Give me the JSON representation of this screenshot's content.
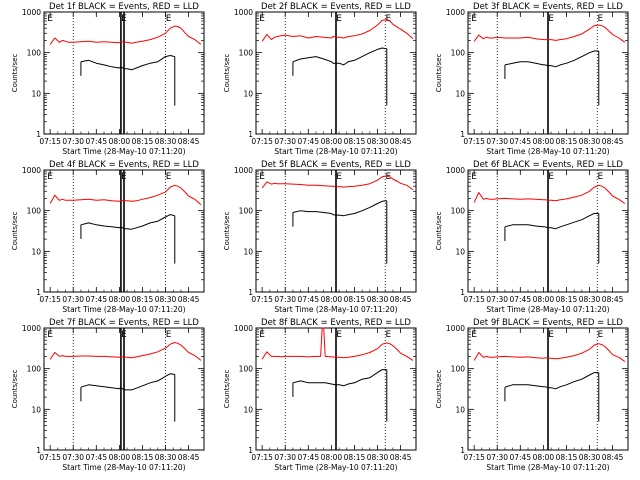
{
  "figure": {
    "colors": {
      "events": "#000000",
      "lld": "#ff0000",
      "axis": "#000000",
      "background": "#ffffff"
    },
    "shared": {
      "xlabel": "Start Time (28-May-10 07:11:20)",
      "ylabel": "Counts/sec",
      "xticks": [
        "07:15",
        "07:30",
        "07:45",
        "08:00",
        "08:15",
        "08:30",
        "08:45"
      ],
      "yticks": [
        "1",
        "10",
        "100",
        "1000"
      ],
      "marker_label": "E"
    }
  },
  "chart_data": [
    {
      "type": "line",
      "title": "Det 1f BLACK = Events, RED = LLD",
      "xlabel": "Start Time (28-May-10 07:11:20)",
      "ylabel": "Counts/sec",
      "yscale": "log",
      "ylim": [
        1,
        1000
      ],
      "xlim": [
        -4,
        100
      ],
      "x": [
        0,
        3,
        6,
        8,
        10,
        12,
        15,
        20,
        25,
        30,
        35,
        40,
        45,
        46,
        48,
        50,
        53,
        56,
        60,
        65,
        70,
        75,
        78,
        81,
        83,
        85,
        88,
        90,
        94,
        98
      ],
      "series": [
        {
          "name": "LLD",
          "color": "#ff0000",
          "values": [
            160,
            230,
            180,
            200,
            190,
            180,
            180,
            185,
            190,
            180,
            185,
            180,
            175,
            190,
            180,
            180,
            170,
            180,
            190,
            210,
            240,
            300,
            400,
            450,
            440,
            400,
            300,
            250,
            210,
            160
          ]
        },
        {
          "name": "Events",
          "color": "#000000",
          "values": [
            null,
            null,
            null,
            null,
            null,
            null,
            null,
            60,
            65,
            55,
            50,
            45,
            42,
            45,
            40,
            40,
            38,
            42,
            48,
            55,
            60,
            80,
            85,
            80,
            null,
            null,
            null,
            null,
            null,
            null
          ]
        }
      ],
      "vertical_lines": {
        "dotted": [
          15,
          75
        ],
        "solid": [
          46,
          48
        ]
      },
      "markers": [
        "E",
        "E",
        "E"
      ]
    },
    {
      "type": "line",
      "title": "Det 2f BLACK = Events, RED = LLD",
      "xlabel": "Start Time (28-May-10 07:11:20)",
      "ylabel": "Counts/sec",
      "yscale": "log",
      "ylim": [
        1,
        1000
      ],
      "xlim": [
        -4,
        100
      ],
      "x": [
        0,
        3,
        6,
        8,
        10,
        12,
        15,
        20,
        25,
        30,
        35,
        40,
        45,
        46,
        48,
        50,
        53,
        56,
        60,
        65,
        70,
        75,
        78,
        81,
        83,
        85,
        88,
        90,
        94,
        98
      ],
      "series": [
        {
          "name": "LLD",
          "color": "#ff0000",
          "values": [
            190,
            280,
            210,
            240,
            250,
            260,
            270,
            250,
            260,
            230,
            250,
            240,
            230,
            250,
            240,
            240,
            230,
            250,
            260,
            290,
            350,
            480,
            620,
            650,
            600,
            500,
            420,
            380,
            300,
            220
          ]
        },
        {
          "name": "Events",
          "color": "#000000",
          "values": [
            null,
            null,
            null,
            null,
            null,
            null,
            null,
            60,
            70,
            75,
            80,
            70,
            60,
            55,
            55,
            55,
            50,
            60,
            65,
            80,
            100,
            120,
            130,
            125,
            null,
            null,
            null,
            null,
            null,
            null
          ]
        }
      ],
      "vertical_lines": {
        "dotted": [
          15,
          80
        ],
        "solid": [
          48
        ]
      },
      "markers": [
        "E",
        "E",
        "E"
      ]
    },
    {
      "type": "line",
      "title": "Det 3f BLACK = Events, RED = LLD",
      "xlabel": "Start Time (28-May-10 07:11:20)",
      "ylabel": "Counts/sec",
      "yscale": "log",
      "ylim": [
        1,
        1000
      ],
      "xlim": [
        -4,
        100
      ],
      "x": [
        0,
        3,
        6,
        8,
        10,
        12,
        15,
        20,
        25,
        30,
        35,
        40,
        45,
        46,
        48,
        50,
        53,
        56,
        60,
        65,
        70,
        75,
        78,
        81,
        83,
        85,
        88,
        90,
        94,
        98
      ],
      "series": [
        {
          "name": "LLD",
          "color": "#ff0000",
          "values": [
            190,
            270,
            220,
            240,
            230,
            230,
            240,
            230,
            230,
            230,
            240,
            220,
            210,
            210,
            210,
            210,
            200,
            210,
            220,
            250,
            290,
            380,
            460,
            480,
            460,
            420,
            330,
            280,
            230,
            180
          ]
        },
        {
          "name": "Events",
          "color": "#000000",
          "values": [
            null,
            null,
            null,
            null,
            null,
            null,
            null,
            50,
            55,
            60,
            60,
            55,
            50,
            50,
            48,
            48,
            45,
            50,
            55,
            65,
            80,
            100,
            110,
            110,
            null,
            null,
            null,
            null,
            null,
            null
          ]
        }
      ],
      "vertical_lines": {
        "dotted": [
          15,
          80
        ],
        "solid": [
          48
        ]
      },
      "markers": [
        "E",
        "E",
        "E"
      ]
    },
    {
      "type": "line",
      "title": "Det 4f BLACK = Events, RED = LLD",
      "xlabel": "Start Time (28-May-10 07:11:20)",
      "ylabel": "Counts/sec",
      "yscale": "log",
      "ylim": [
        1,
        1000
      ],
      "xlim": [
        -4,
        100
      ],
      "x": [
        0,
        3,
        6,
        8,
        10,
        12,
        15,
        20,
        25,
        30,
        35,
        40,
        45,
        46,
        48,
        50,
        53,
        56,
        60,
        65,
        70,
        75,
        78,
        81,
        83,
        85,
        88,
        90,
        94,
        98
      ],
      "series": [
        {
          "name": "LLD",
          "color": "#ff0000",
          "values": [
            150,
            240,
            180,
            190,
            180,
            180,
            180,
            185,
            190,
            180,
            185,
            175,
            170,
            180,
            175,
            175,
            170,
            175,
            190,
            210,
            240,
            290,
            380,
            420,
            400,
            360,
            280,
            230,
            190,
            140
          ]
        },
        {
          "name": "Events",
          "color": "#000000",
          "values": [
            null,
            null,
            null,
            null,
            null,
            null,
            null,
            45,
            50,
            45,
            42,
            40,
            38,
            40,
            36,
            36,
            35,
            38,
            42,
            50,
            55,
            70,
            80,
            75,
            null,
            null,
            null,
            null,
            null,
            null
          ]
        }
      ],
      "vertical_lines": {
        "dotted": [
          15,
          75
        ],
        "solid": [
          46,
          48
        ]
      },
      "markers": [
        "E",
        "E",
        "E"
      ]
    },
    {
      "type": "line",
      "title": "Det 5f BLACK = Events, RED = LLD",
      "xlabel": "Start Time (28-May-10 07:11:20)",
      "ylabel": "Counts/sec",
      "yscale": "log",
      "ylim": [
        1,
        1000
      ],
      "xlim": [
        -4,
        100
      ],
      "x": [
        0,
        3,
        6,
        8,
        10,
        12,
        15,
        20,
        25,
        30,
        35,
        40,
        45,
        46,
        48,
        50,
        53,
        56,
        60,
        65,
        70,
        75,
        78,
        81,
        83,
        85,
        88,
        90,
        94,
        98
      ],
      "series": [
        {
          "name": "LLD",
          "color": "#ff0000",
          "values": [
            360,
            510,
            450,
            470,
            460,
            460,
            460,
            450,
            440,
            420,
            420,
            410,
            400,
            400,
            390,
            390,
            380,
            390,
            400,
            420,
            460,
            560,
            680,
            720,
            680,
            600,
            520,
            470,
            420,
            330
          ]
        },
        {
          "name": "Events",
          "color": "#000000",
          "values": [
            null,
            null,
            null,
            null,
            null,
            null,
            null,
            90,
            100,
            95,
            95,
            90,
            85,
            80,
            78,
            78,
            75,
            80,
            85,
            100,
            120,
            150,
            170,
            175,
            null,
            null,
            null,
            null,
            null,
            null
          ]
        }
      ],
      "vertical_lines": {
        "dotted": [
          15,
          80
        ],
        "solid": [
          48
        ]
      },
      "markers": [
        "E",
        "E",
        "E"
      ]
    },
    {
      "type": "line",
      "title": "Det 6f BLACK = Events, RED = LLD",
      "xlabel": "Start Time (28-May-10 07:11:20)",
      "ylabel": "Counts/sec",
      "yscale": "log",
      "ylim": [
        1,
        1000
      ],
      "xlim": [
        -4,
        100
      ],
      "x": [
        0,
        3,
        6,
        8,
        10,
        12,
        15,
        20,
        25,
        30,
        35,
        40,
        45,
        46,
        48,
        50,
        53,
        56,
        60,
        65,
        70,
        75,
        78,
        81,
        83,
        85,
        88,
        90,
        94,
        98
      ],
      "series": [
        {
          "name": "LLD",
          "color": "#ff0000",
          "values": [
            160,
            280,
            190,
            200,
            190,
            190,
            195,
            200,
            195,
            190,
            195,
            190,
            185,
            185,
            180,
            180,
            175,
            185,
            195,
            215,
            240,
            300,
            380,
            420,
            400,
            360,
            280,
            230,
            190,
            150
          ]
        },
        {
          "name": "Events",
          "color": "#000000",
          "values": [
            null,
            null,
            null,
            null,
            null,
            null,
            null,
            40,
            45,
            45,
            45,
            42,
            40,
            40,
            38,
            38,
            36,
            40,
            45,
            52,
            60,
            75,
            85,
            85,
            null,
            null,
            null,
            null,
            null,
            null
          ]
        }
      ],
      "vertical_lines": {
        "dotted": [
          15,
          80
        ],
        "solid": [
          48
        ]
      },
      "markers": [
        "E",
        "E",
        "E"
      ]
    },
    {
      "type": "line",
      "title": "Det 7f BLACK = Events, RED = LLD",
      "xlabel": "Start Time (28-May-10 07:11:20)",
      "ylabel": "Counts/sec",
      "yscale": "log",
      "ylim": [
        1,
        1000
      ],
      "xlim": [
        -4,
        100
      ],
      "x": [
        0,
        3,
        6,
        8,
        10,
        12,
        15,
        20,
        25,
        30,
        35,
        40,
        45,
        46,
        48,
        50,
        53,
        56,
        60,
        65,
        70,
        75,
        78,
        81,
        83,
        85,
        88,
        90,
        94,
        98
      ],
      "series": [
        {
          "name": "LLD",
          "color": "#ff0000",
          "values": [
            170,
            250,
            200,
            210,
            200,
            200,
            200,
            205,
            205,
            200,
            200,
            195,
            190,
            200,
            190,
            190,
            185,
            195,
            210,
            230,
            260,
            320,
            400,
            440,
            420,
            380,
            300,
            250,
            210,
            160
          ]
        },
        {
          "name": "Events",
          "color": "#000000",
          "values": [
            null,
            null,
            null,
            null,
            null,
            null,
            null,
            35,
            40,
            38,
            36,
            34,
            32,
            34,
            30,
            30,
            30,
            33,
            38,
            45,
            50,
            65,
            75,
            72,
            null,
            null,
            null,
            null,
            null,
            null
          ]
        }
      ],
      "vertical_lines": {
        "dotted": [
          15,
          75
        ],
        "solid": [
          46,
          48
        ]
      },
      "markers": [
        "E",
        "E",
        "E"
      ]
    },
    {
      "type": "line",
      "title": "Det 8f BLACK = Events, RED = LLD",
      "xlabel": "Start Time (28-May-10 07:11:20)",
      "ylabel": "Counts/sec",
      "yscale": "log",
      "ylim": [
        1,
        1000
      ],
      "xlim": [
        -4,
        100
      ],
      "x": [
        0,
        3,
        6,
        8,
        10,
        12,
        15,
        20,
        25,
        30,
        35,
        38,
        39,
        40,
        41,
        45,
        48,
        50,
        53,
        56,
        60,
        65,
        70,
        75,
        78,
        81,
        83,
        85,
        88,
        90,
        94,
        98
      ],
      "series": [
        {
          "name": "LLD",
          "color": "#ff0000",
          "values": [
            170,
            260,
            200,
            200,
            200,
            195,
            200,
            200,
            200,
            195,
            200,
            200,
            1000,
            1000,
            200,
            195,
            190,
            190,
            185,
            190,
            200,
            220,
            250,
            310,
            400,
            430,
            410,
            370,
            290,
            240,
            200,
            160
          ]
        },
        {
          "name": "Events",
          "color": "#000000",
          "values": [
            null,
            null,
            null,
            null,
            null,
            null,
            null,
            45,
            50,
            45,
            45,
            45,
            45,
            45,
            45,
            42,
            40,
            40,
            38,
            42,
            45,
            55,
            60,
            80,
            95,
            95,
            null,
            null,
            null,
            null,
            null,
            null
          ]
        }
      ],
      "vertical_lines": {
        "dotted": [
          15,
          80
        ],
        "solid": [
          48
        ]
      },
      "markers": [
        "E",
        "E",
        "E"
      ]
    },
    {
      "type": "line",
      "title": "Det 9f BLACK = Events, RED = LLD",
      "xlabel": "Start Time (28-May-10 07:11:20)",
      "ylabel": "Counts/sec",
      "yscale": "log",
      "ylim": [
        1,
        1000
      ],
      "xlim": [
        -4,
        100
      ],
      "x": [
        0,
        3,
        6,
        8,
        10,
        12,
        15,
        20,
        25,
        30,
        35,
        40,
        45,
        46,
        48,
        50,
        53,
        56,
        60,
        65,
        70,
        75,
        78,
        81,
        83,
        85,
        88,
        90,
        94,
        98
      ],
      "series": [
        {
          "name": "LLD",
          "color": "#ff0000",
          "values": [
            160,
            250,
            190,
            200,
            190,
            190,
            195,
            200,
            195,
            190,
            195,
            185,
            180,
            185,
            180,
            180,
            175,
            180,
            190,
            210,
            240,
            300,
            380,
            410,
            390,
            350,
            270,
            220,
            190,
            150
          ]
        },
        {
          "name": "Events",
          "color": "#000000",
          "values": [
            null,
            null,
            null,
            null,
            null,
            null,
            null,
            35,
            40,
            40,
            40,
            38,
            36,
            36,
            34,
            34,
            32,
            36,
            40,
            48,
            55,
            70,
            80,
            80,
            null,
            null,
            null,
            null,
            null,
            null
          ]
        }
      ],
      "vertical_lines": {
        "dotted": [
          15,
          80
        ],
        "solid": [
          48
        ]
      },
      "markers": [
        "E",
        "E",
        "E"
      ]
    }
  ]
}
